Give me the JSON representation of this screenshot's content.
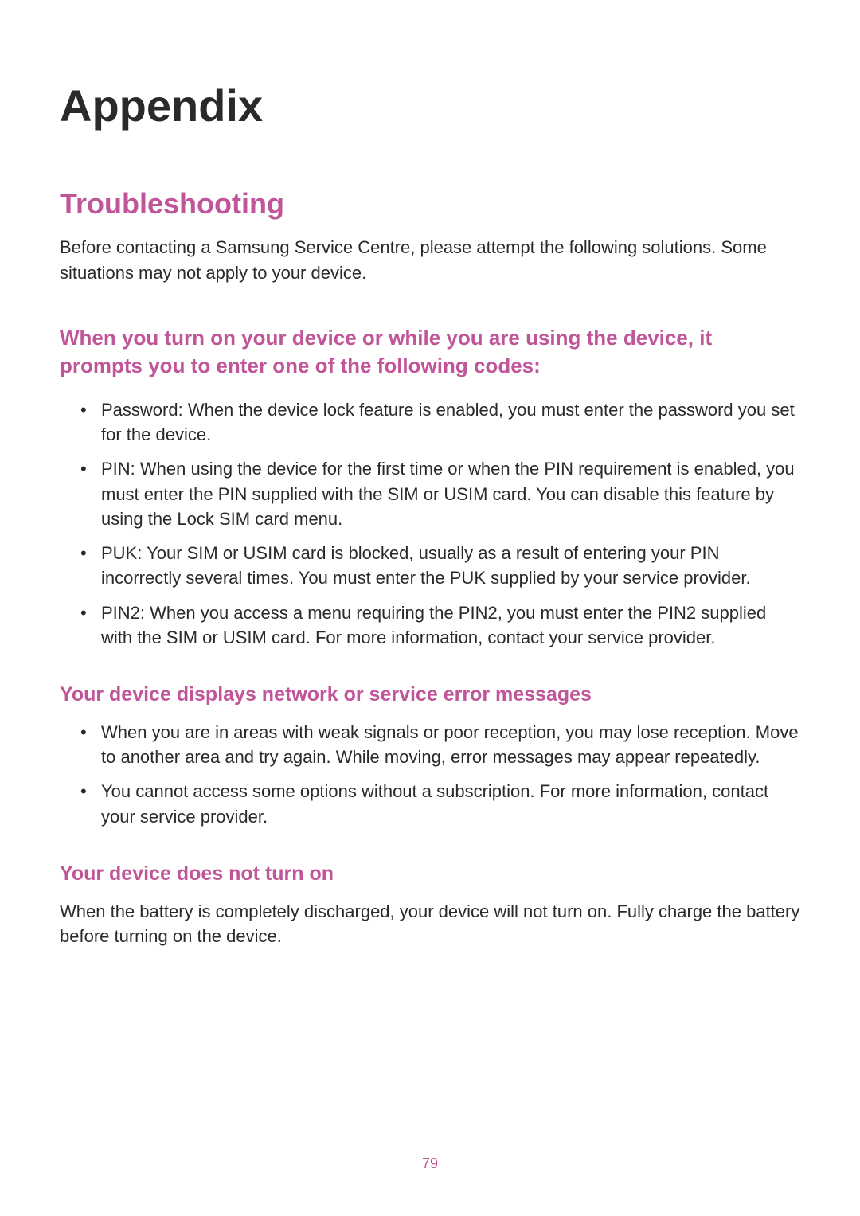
{
  "page": {
    "title": "Appendix",
    "number": "79",
    "title_color": "#2a2a2a",
    "title_fontsize": 56,
    "accent_color": "#c05599",
    "body_fontsize": 22,
    "heading_fontsize": 36,
    "subheading_fontsize": 26,
    "background_color": "#ffffff",
    "text_color": "#2a2a2a"
  },
  "section": {
    "heading": "Troubleshooting",
    "intro": "Before contacting a Samsung Service Centre, please attempt the following solutions. Some situations may not apply to your device."
  },
  "sub1": {
    "heading": "When you turn on your device or while you are using the device, it prompts you to enter one of the following codes:",
    "items": [
      "Password: When the device lock feature is enabled, you must enter the password you set for the device.",
      "PIN: When using the device for the first time or when the PIN requirement is enabled, you must enter the PIN supplied with the SIM or USIM card. You can disable this feature by using the Lock SIM card menu.",
      "PUK: Your SIM or USIM card is blocked, usually as a result of entering your PIN incorrectly several times. You must enter the PUK supplied by your service provider.",
      "PIN2: When you access a menu requiring the PIN2, you must enter the PIN2 supplied with the SIM or USIM card. For more information, contact your service provider."
    ]
  },
  "sub2": {
    "heading": "Your device displays network or service error messages",
    "items": [
      "When you are in areas with weak signals or poor reception, you may lose reception. Move to another area and try again. While moving, error messages may appear repeatedly.",
      "You cannot access some options without a subscription. For more information, contact your service provider."
    ]
  },
  "sub3": {
    "heading": "Your device does not turn on",
    "text": "When the battery is completely discharged, your device will not turn on. Fully charge the battery before turning on the device."
  }
}
